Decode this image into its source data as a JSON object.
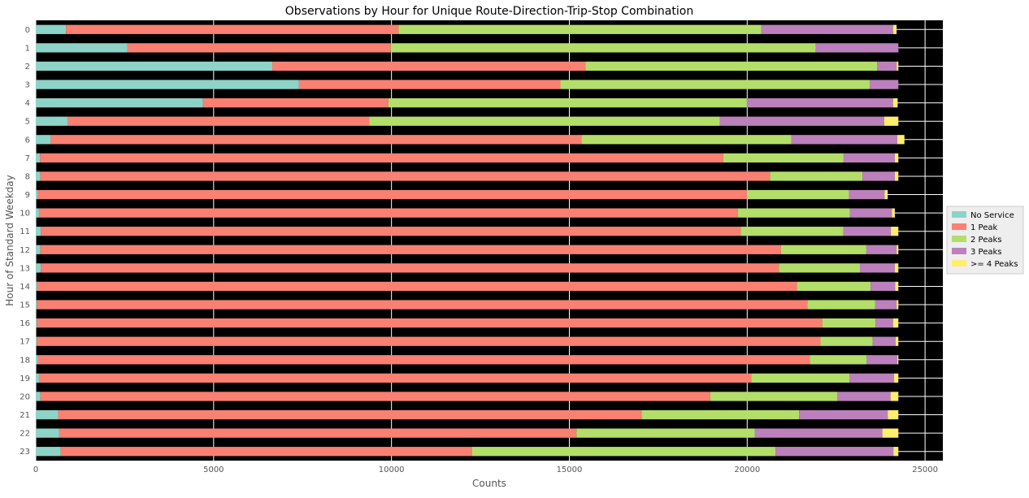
{
  "chart_data": {
    "type": "bar",
    "orientation": "horizontal",
    "stacked": true,
    "title": "Observations by Hour for Unique Route-Direction-Trip-Stop Combination",
    "xlabel": "Counts",
    "ylabel": "Hour of Standard Weekday",
    "xlim": [
      0,
      25500
    ],
    "xticks": [
      0,
      5000,
      10000,
      15000,
      20000,
      25000
    ],
    "grid": true,
    "legend_position": "right",
    "categories": [
      "0",
      "1",
      "2",
      "3",
      "4",
      "5",
      "6",
      "7",
      "8",
      "9",
      "10",
      "11",
      "12",
      "13",
      "14",
      "15",
      "16",
      "17",
      "18",
      "19",
      "20",
      "21",
      "22",
      "23"
    ],
    "series": [
      {
        "name": "No Service",
        "color": "#8dd3c7",
        "values": [
          850,
          2570,
          6650,
          7400,
          4700,
          900,
          420,
          120,
          130,
          60,
          90,
          140,
          130,
          140,
          40,
          30,
          30,
          30,
          60,
          90,
          130,
          630,
          660,
          700
        ]
      },
      {
        "name": "1 Peak",
        "color": "#fa8072",
        "values": [
          9350,
          7410,
          8800,
          7350,
          5210,
          8480,
          14920,
          19210,
          20510,
          19940,
          19650,
          19680,
          20820,
          20750,
          21360,
          21660,
          22080,
          22030,
          21700,
          20030,
          18830,
          16400,
          14540,
          11570
        ]
      },
      {
        "name": "2 Peaks",
        "color": "#b3de69",
        "values": [
          10200,
          11950,
          8200,
          8700,
          10080,
          9850,
          5900,
          3380,
          2600,
          2860,
          3150,
          2880,
          2400,
          2280,
          2070,
          1910,
          1500,
          1470,
          1600,
          2760,
          3570,
          4430,
          5010,
          8530
        ]
      },
      {
        "name": "3 Peaks",
        "color": "#bc80bd",
        "values": [
          3700,
          2320,
          550,
          800,
          4110,
          4620,
          2980,
          1440,
          910,
          1000,
          1180,
          1340,
          850,
          980,
          690,
          600,
          490,
          640,
          860,
          1250,
          1500,
          2490,
          3590,
          3310
        ]
      },
      {
        "name": ">= 4 Peaks",
        "color": "#ffed6f",
        "values": [
          100,
          0,
          50,
          0,
          130,
          400,
          200,
          100,
          100,
          90,
          80,
          210,
          50,
          100,
          90,
          50,
          150,
          80,
          30,
          120,
          220,
          300,
          450,
          140
        ]
      }
    ]
  }
}
